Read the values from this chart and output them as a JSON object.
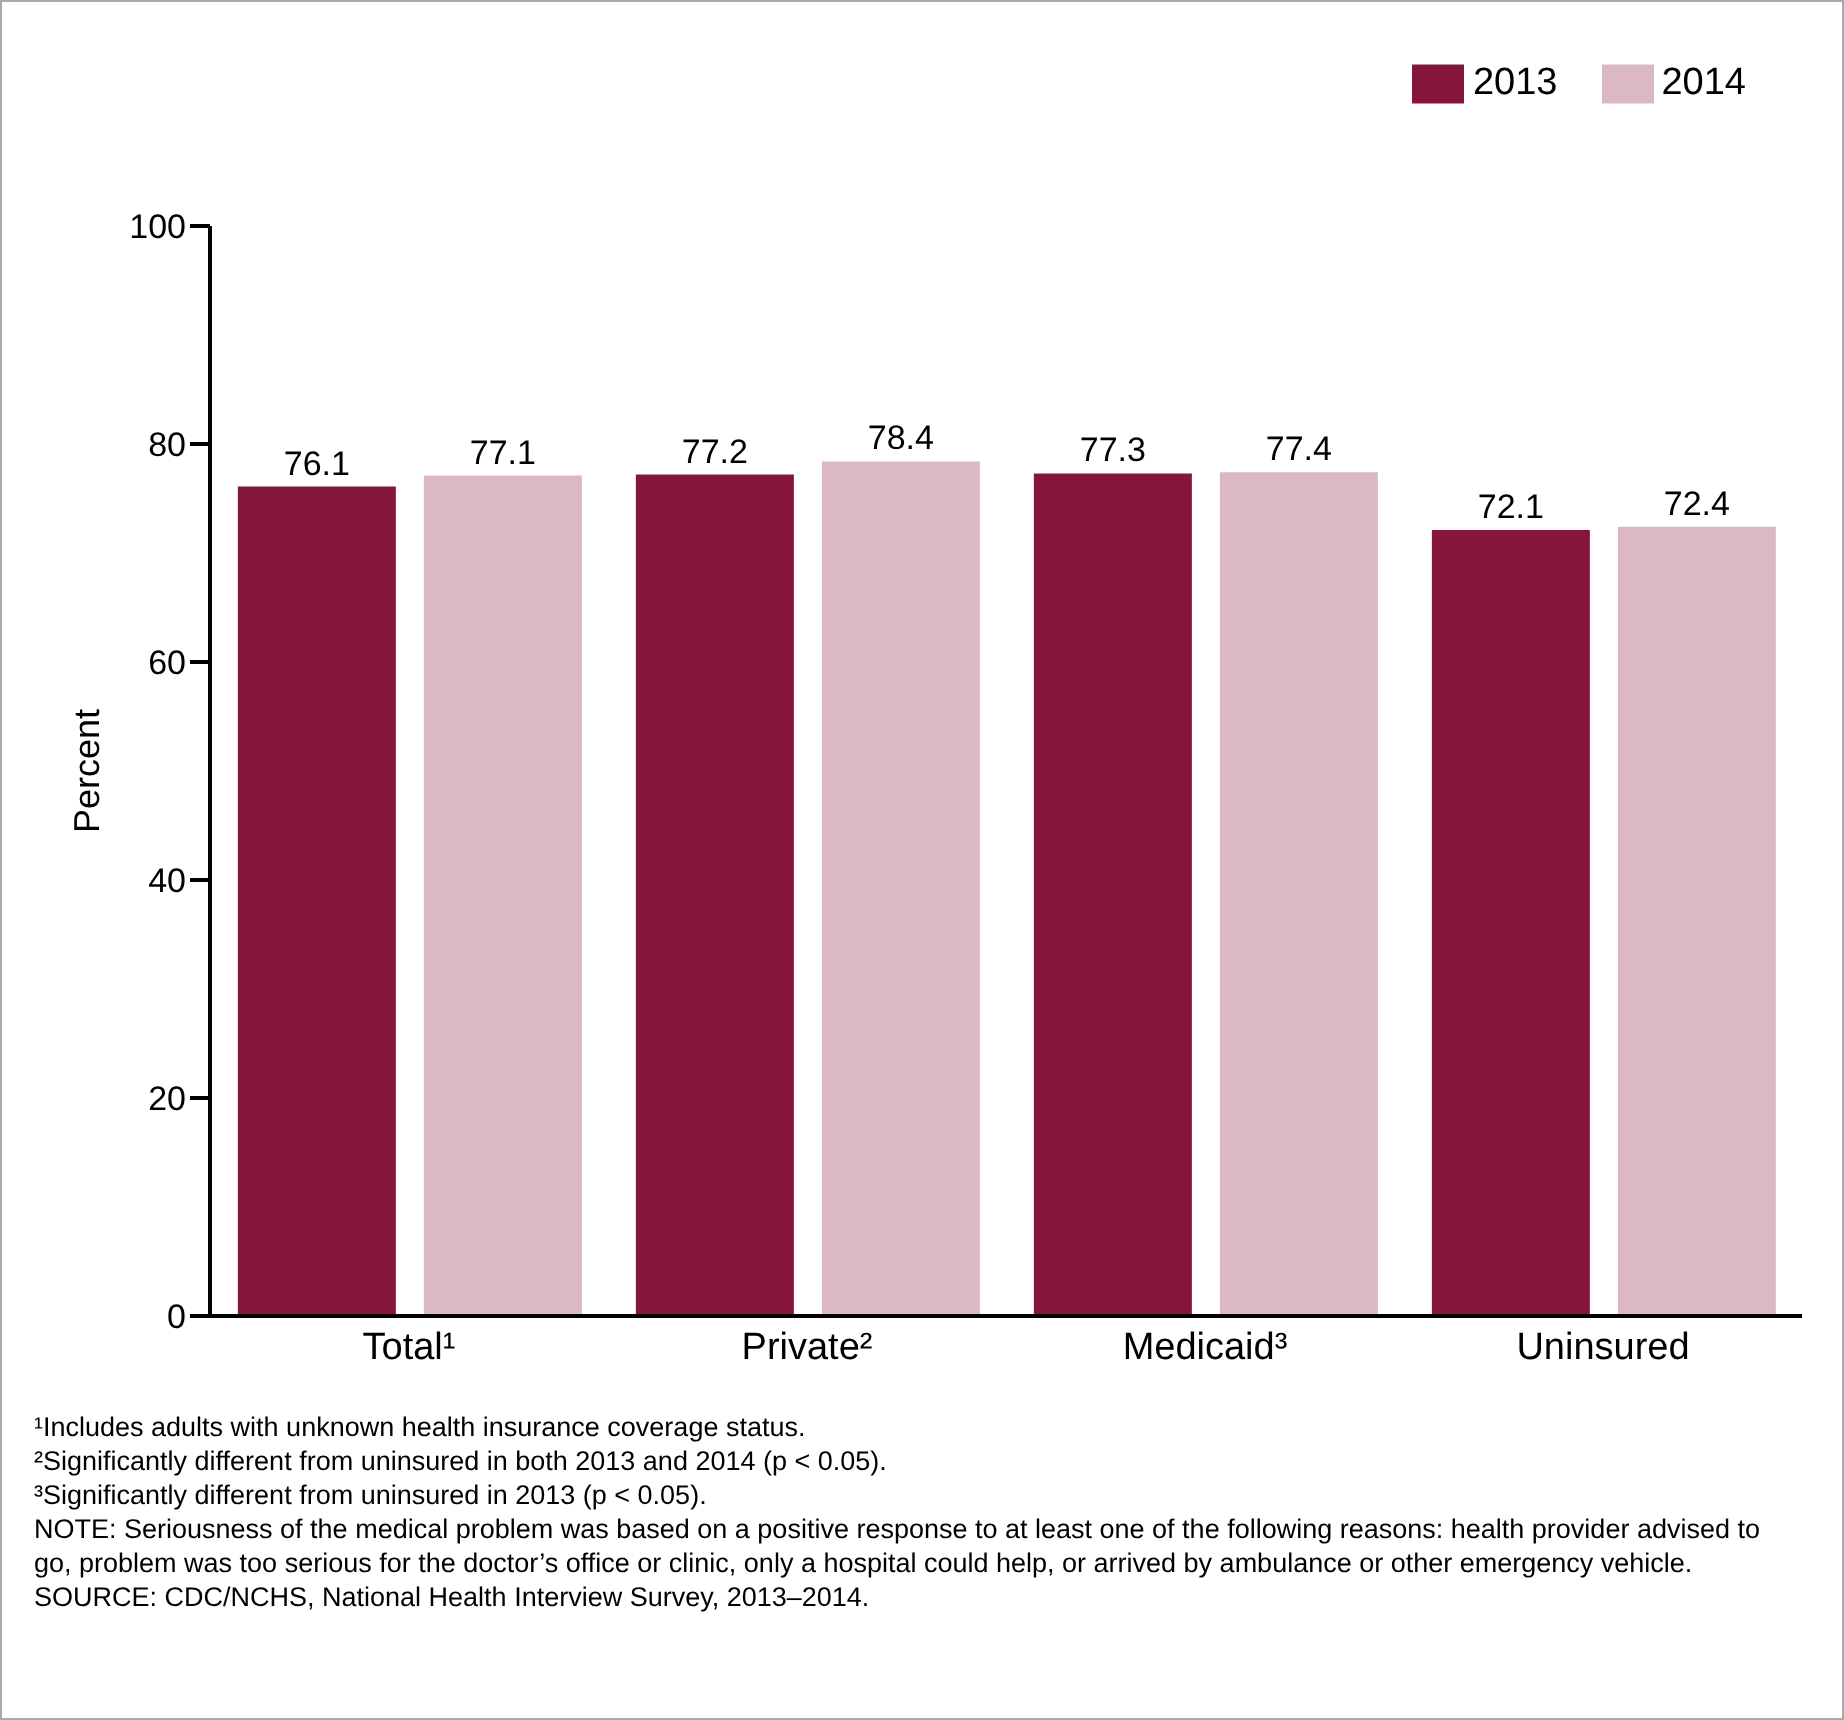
{
  "chart_data": {
    "type": "bar",
    "ylabel": "Percent",
    "categories": [
      "Total¹",
      "Private²",
      "Medicaid³",
      "Uninsured"
    ],
    "series": [
      {
        "name": "2013",
        "color": "#85163a",
        "values": [
          76.1,
          77.2,
          77.3,
          72.1
        ]
      },
      {
        "name": "2014",
        "color": "#dbb8c3",
        "values": [
          77.1,
          78.4,
          77.4,
          72.4
        ]
      }
    ],
    "ylim": [
      0,
      100
    ],
    "yticks": [
      0,
      20,
      40,
      60,
      80,
      100
    ],
    "data_labels": true,
    "legend": "top right",
    "annotations": [
      "¹Includes adults with unknown health insurance coverage status.",
      "²Significantly different from uninsured in both 2013 and 2014 (p < 0.05).",
      "³Significantly different from uninsured in 2013 (p < 0.05).",
      "NOTE: Seriousness of the medical problem was based on a positive response to at least one of the following reasons: health provider advised to go, problem was too serious for the doctor’s office or clinic, only a hospital could help, or arrived by ambulance or other emergency vehicle.",
      "SOURCE: CDC/NCHS, National Health Interview Survey, 2013–2014."
    ]
  }
}
